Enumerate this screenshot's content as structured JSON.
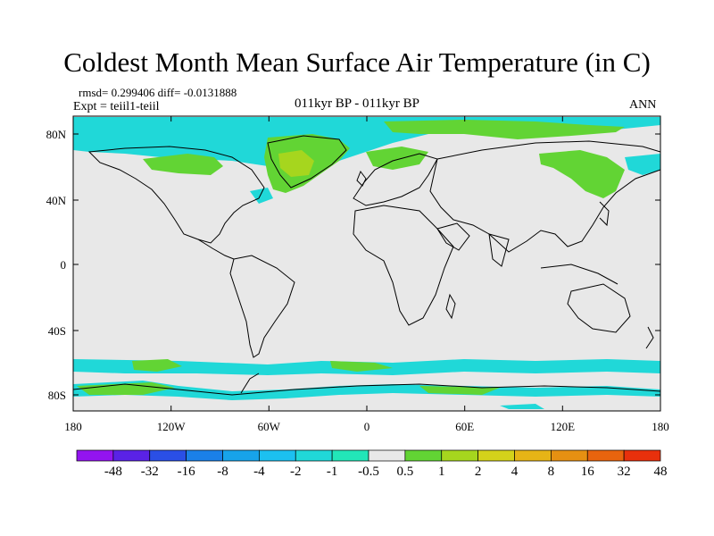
{
  "title": "Coldest Month Mean Surface Air Temperature (in C)",
  "stats": "rmsd= 0.299406 diff= -0.0131888",
  "experiment": "Expt = teiil1-teiil",
  "period": "011kyr BP - 011kyr BP",
  "season": "ANN",
  "map": {
    "background_color": "#e8e8e8",
    "lat_ticks": [
      "80N",
      "40N",
      "0",
      "40S",
      "80S"
    ],
    "lon_ticks": [
      "180",
      "120W",
      "60W",
      "0",
      "60E",
      "120E",
      "180"
    ]
  },
  "colorbar": {
    "colors": [
      "#9314f0",
      "#5a22e6",
      "#2a4fe6",
      "#1a80e8",
      "#17a3ea",
      "#1cc0f0",
      "#20d8d8",
      "#22e6b8",
      "#e8e8e8",
      "#62d434",
      "#a6d61e",
      "#d4d21a",
      "#e6b416",
      "#e69012",
      "#e8640e",
      "#e8300c"
    ],
    "labels": [
      "-48",
      "-32",
      "-16",
      "-8",
      "-4",
      "-2",
      "-1",
      "-0.5",
      "0.5",
      "1",
      "2",
      "4",
      "8",
      "16",
      "32",
      "48"
    ]
  }
}
